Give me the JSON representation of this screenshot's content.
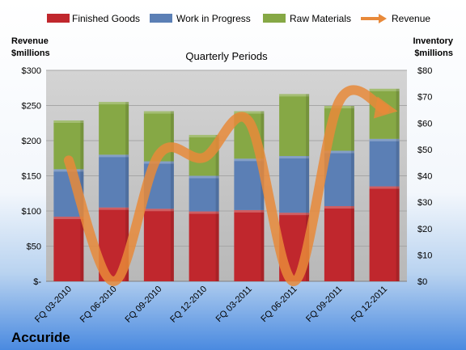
{
  "chart_data": {
    "type": "bar",
    "stacked": true,
    "title": "Quarterly Periods",
    "company": "Accuride",
    "ylabel_left": [
      "Revenue",
      "$millions"
    ],
    "ylabel_right": [
      "Inventory",
      "$millions"
    ],
    "categories": [
      "FQ 03-2010",
      "FQ 06-2010",
      "FQ 09-2010",
      "FQ 12-2010",
      "FQ 03-2011",
      "FQ 06-2011",
      "FQ 09-2011",
      "FQ 12-2011"
    ],
    "series": [
      {
        "name": "Finished Goods",
        "axis": "right",
        "color": "#c0272d",
        "values": [
          24.5,
          28,
          27.5,
          26.5,
          27,
          26,
          28.5,
          36
        ]
      },
      {
        "name": "Work in Progress",
        "axis": "right",
        "color": "#5b7fb5",
        "values": [
          18,
          20,
          18,
          13.5,
          19.5,
          21.5,
          21,
          18
        ]
      },
      {
        "name": "Raw Materials",
        "axis": "right",
        "color": "#86a845",
        "values": [
          18.5,
          20,
          19,
          15.5,
          18,
          23.5,
          17,
          19
        ]
      },
      {
        "name": "Revenue",
        "axis": "left",
        "type": "line",
        "color": "#e8893a",
        "values": [
          172,
          0,
          180,
          176,
          227,
          0,
          256,
          245
        ]
      }
    ],
    "ylim_left": [
      0,
      300
    ],
    "ylim_right": [
      0,
      80
    ],
    "yticks_left": [
      "$-",
      "$50",
      "$100",
      "$150",
      "$200",
      "$250",
      "$300"
    ],
    "yticks_right": [
      "$0",
      "$10",
      "$20",
      "$30",
      "$40",
      "$50",
      "$60",
      "$70",
      "$80"
    ],
    "grid": true,
    "legend_position": "top"
  }
}
